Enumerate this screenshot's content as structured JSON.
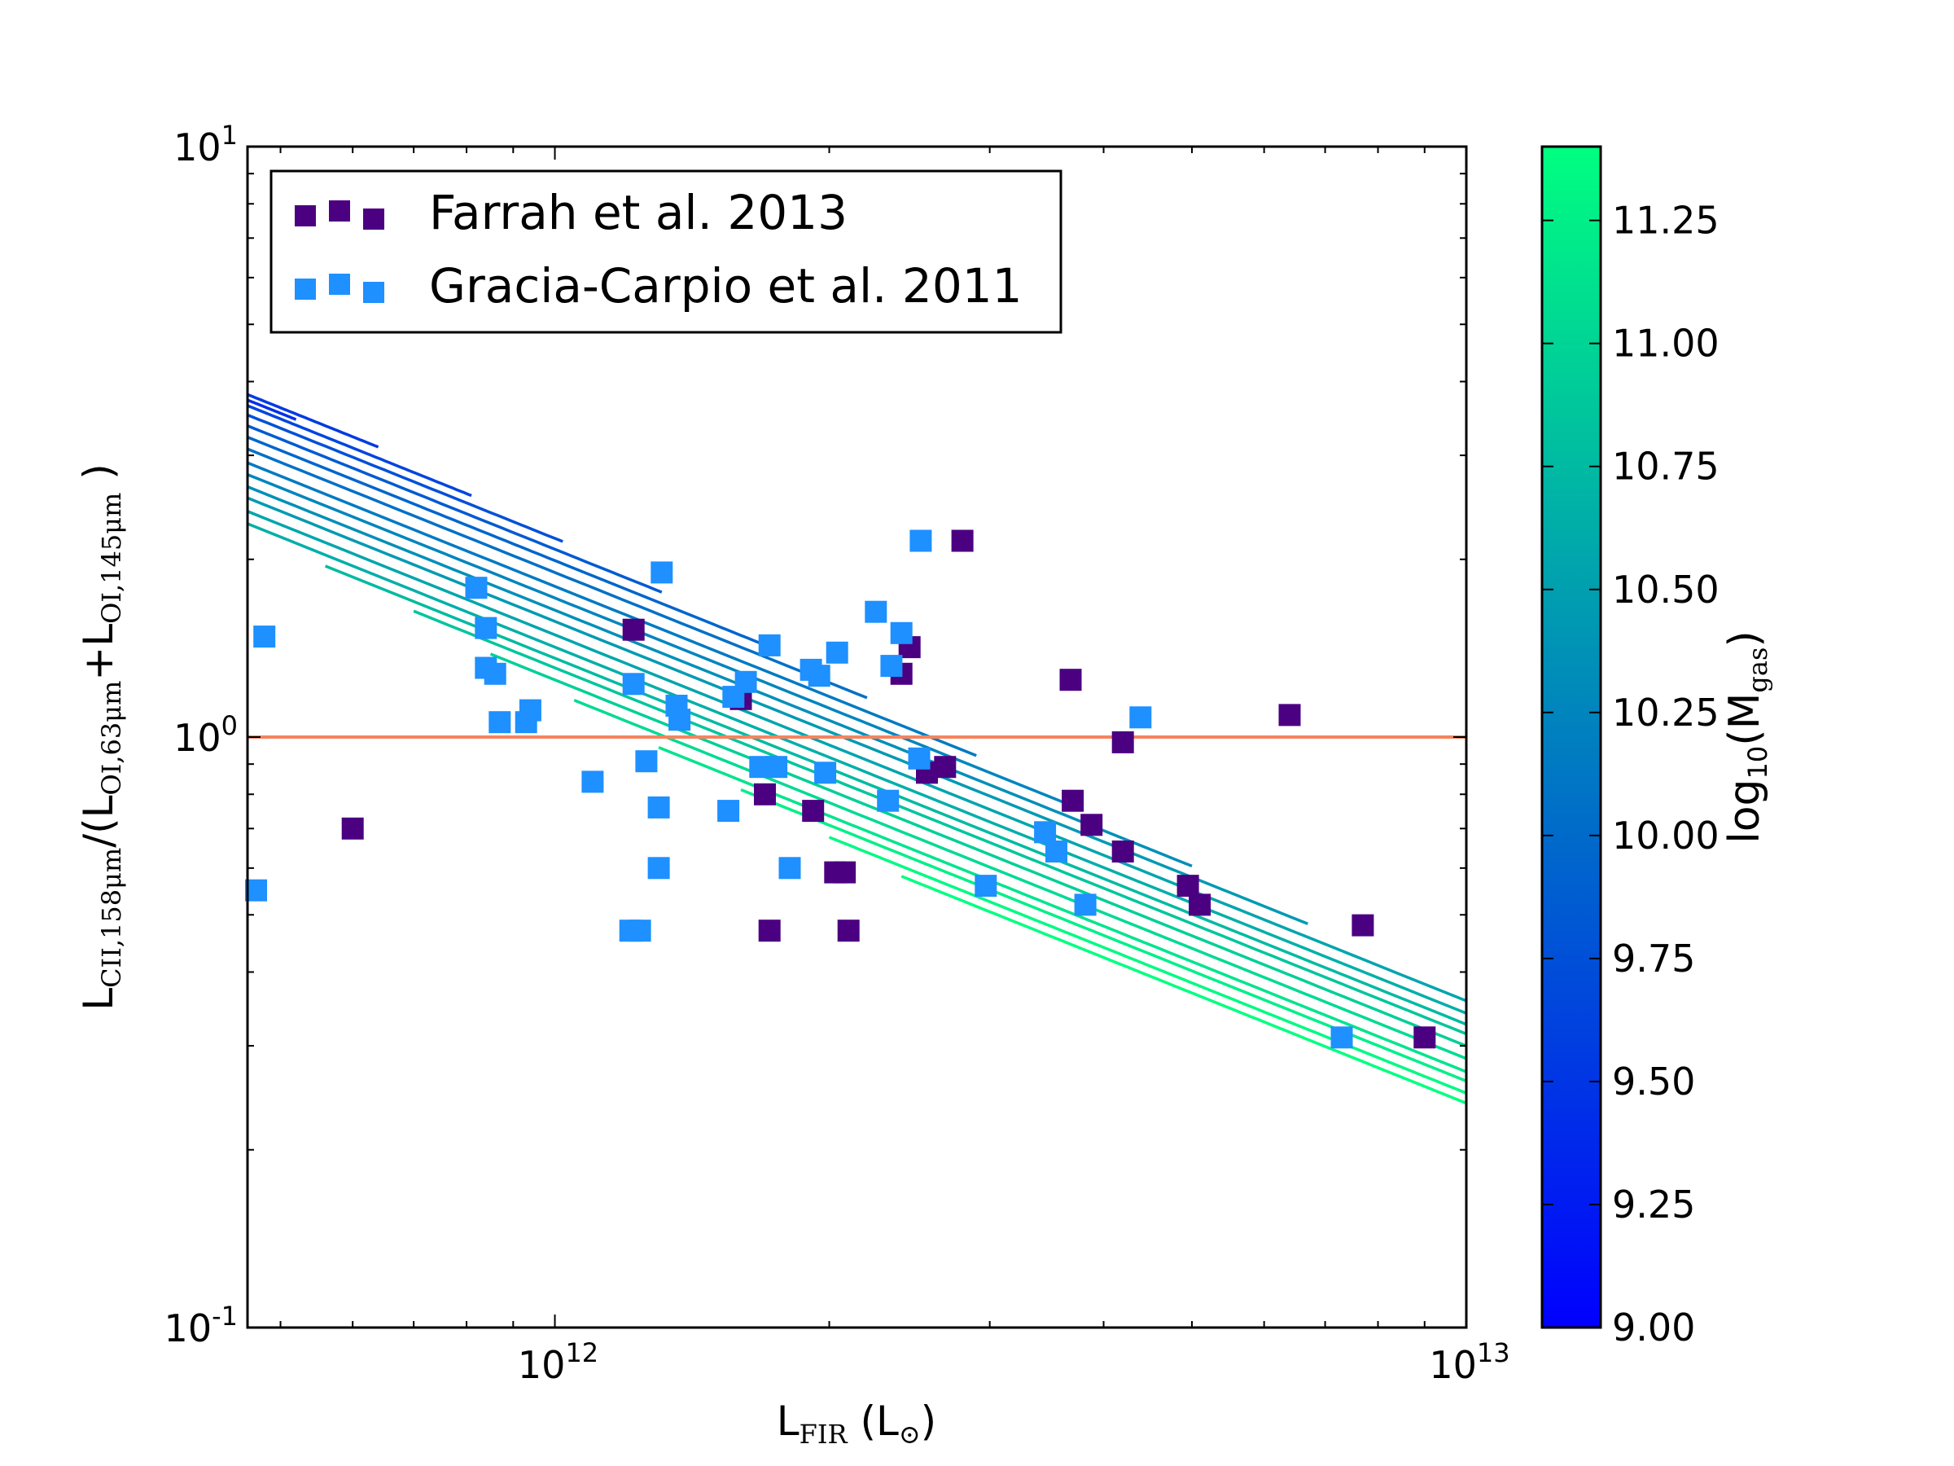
{
  "chart_data": {
    "type": "scatter",
    "title": "",
    "xscale": "log",
    "yscale": "log",
    "xlim": [
      460000000000,
      10000000000000
    ],
    "ylim": [
      0.1,
      10
    ],
    "x_ticks": [
      {
        "base": "10",
        "exp": "12",
        "value": 1000000000000
      },
      {
        "base": "10",
        "exp": "13",
        "value": 10000000000000
      }
    ],
    "y_ticks": [
      {
        "base": "10",
        "exp": "-1",
        "value": 0.1
      },
      {
        "base": "10",
        "exp": "0",
        "value": 1
      },
      {
        "base": "10",
        "exp": "1",
        "value": 10
      }
    ],
    "xlabel": {
      "main": "L",
      "sub": "FIR",
      "unit_open": " (L",
      "unit_sub": "⊙",
      "unit_close": ")"
    },
    "ylabel": {
      "p1": "L",
      "s1": "CII,158μm",
      "p2": "/(L",
      "s2": "OI,63μm",
      "p3": "+L",
      "s3": "OI,145μm",
      "p4": " )"
    },
    "reference_line": {
      "y": 1.0,
      "color": "#f4845f"
    },
    "series": [
      {
        "name": "Farrah et al. 2013",
        "color": "#4b0082",
        "points": [
          [
            600000000000,
            0.7
          ],
          [
            1220000000000,
            1.52
          ],
          [
            1600000000000,
            1.16
          ],
          [
            1700000000000,
            0.8
          ],
          [
            1720000000000,
            0.47
          ],
          [
            1920000000000,
            0.75
          ],
          [
            2030000000000,
            0.59
          ],
          [
            2080000000000,
            0.59
          ],
          [
            2100000000000,
            0.47
          ],
          [
            2400000000000,
            1.28
          ],
          [
            2450000000000,
            1.42
          ],
          [
            2560000000000,
            0.87
          ],
          [
            2680000000000,
            0.89
          ],
          [
            2800000000000,
            2.15
          ],
          [
            3680000000000,
            1.25
          ],
          [
            3700000000000,
            0.78
          ],
          [
            3880000000000,
            0.71
          ],
          [
            4200000000000,
            0.98
          ],
          [
            4200000000000,
            0.64
          ],
          [
            4950000000000,
            0.56
          ],
          [
            5100000000000,
            0.52
          ],
          [
            6400000000000,
            1.09
          ],
          [
            7700000000000,
            0.48
          ],
          [
            9000000000000,
            0.31
          ]
        ]
      },
      {
        "name": "Gracia-Carpio et al. 2011",
        "color": "#1e90ff",
        "points": [
          [
            470000000000,
            0.55
          ],
          [
            480000000000,
            1.48
          ],
          [
            820000000000,
            1.79
          ],
          [
            840000000000,
            1.53
          ],
          [
            840000000000,
            1.31
          ],
          [
            860000000000,
            1.28
          ],
          [
            870000000000,
            1.06
          ],
          [
            930000000000,
            1.06
          ],
          [
            940000000000,
            1.11
          ],
          [
            1100000000000,
            0.84
          ],
          [
            1210000000000,
            0.47
          ],
          [
            1220000000000,
            1.23
          ],
          [
            1240000000000,
            0.47
          ],
          [
            1260000000000,
            0.91
          ],
          [
            1300000000000,
            0.76
          ],
          [
            1300000000000,
            0.6
          ],
          [
            1310000000000,
            1.9
          ],
          [
            1360000000000,
            1.13
          ],
          [
            1370000000000,
            1.07
          ],
          [
            1550000000000,
            0.75
          ],
          [
            1570000000000,
            1.17
          ],
          [
            1620000000000,
            1.24
          ],
          [
            1680000000000,
            0.89
          ],
          [
            1720000000000,
            1.43
          ],
          [
            1750000000000,
            0.89
          ],
          [
            1810000000000,
            0.6
          ],
          [
            1910000000000,
            1.3
          ],
          [
            1950000000000,
            1.27
          ],
          [
            1980000000000,
            0.87
          ],
          [
            2040000000000,
            1.39
          ],
          [
            2250000000000,
            1.63
          ],
          [
            2320000000000,
            0.78
          ],
          [
            2340000000000,
            1.32
          ],
          [
            2400000000000,
            1.5
          ],
          [
            2510000000000,
            0.92
          ],
          [
            2520000000000,
            2.15
          ],
          [
            2970000000000,
            0.56
          ],
          [
            3450000000000,
            0.69
          ],
          [
            3550000000000,
            0.64
          ],
          [
            3820000000000,
            0.52
          ],
          [
            4390000000000,
            1.08
          ],
          [
            7300000000000,
            0.31
          ]
        ]
      }
    ],
    "model_curves": {
      "parameter": "log10(Mgas)",
      "slope": -0.62,
      "curves": [
        {
          "log_mgas": 9.45,
          "y_at_1e12": 2.3,
          "x_start": 460000000000,
          "x_end": 520000000000
        },
        {
          "log_mgas": 9.55,
          "y_at_1e12": 2.35,
          "x_start": 460000000000,
          "x_end": 640000000000
        },
        {
          "log_mgas": 9.65,
          "y_at_1e12": 2.25,
          "x_start": 460000000000,
          "x_end": 810000000000
        },
        {
          "log_mgas": 9.75,
          "y_at_1e12": 2.17,
          "x_start": 460000000000,
          "x_end": 1020000000000
        },
        {
          "log_mgas": 9.85,
          "y_at_1e12": 2.08,
          "x_start": 460000000000,
          "x_end": 1310000000000
        },
        {
          "log_mgas": 9.95,
          "y_at_1e12": 1.99,
          "x_start": 460000000000,
          "x_end": 1700000000000
        },
        {
          "log_mgas": 10.05,
          "y_at_1e12": 1.9,
          "x_start": 460000000000,
          "x_end": 2200000000000
        },
        {
          "log_mgas": 10.15,
          "y_at_1e12": 1.8,
          "x_start": 460000000000,
          "x_end": 2900000000000
        },
        {
          "log_mgas": 10.25,
          "y_at_1e12": 1.72,
          "x_start": 460000000000,
          "x_end": 3800000000000
        },
        {
          "log_mgas": 10.35,
          "y_at_1e12": 1.64,
          "x_start": 460000000000,
          "x_end": 5000000000000
        },
        {
          "log_mgas": 10.45,
          "y_at_1e12": 1.57,
          "x_start": 460000000000,
          "x_end": 6700000000000
        },
        {
          "log_mgas": 10.55,
          "y_at_1e12": 1.49,
          "x_start": 460000000000,
          "x_end": 10000000000000
        },
        {
          "log_mgas": 10.65,
          "y_at_1e12": 1.42,
          "x_start": 460000000000,
          "x_end": 10000000000000
        },
        {
          "log_mgas": 10.75,
          "y_at_1e12": 1.36,
          "x_start": 560000000000,
          "x_end": 10000000000000
        },
        {
          "log_mgas": 10.85,
          "y_at_1e12": 1.31,
          "x_start": 700000000000,
          "x_end": 10000000000000
        },
        {
          "log_mgas": 10.95,
          "y_at_1e12": 1.25,
          "x_start": 850000000000,
          "x_end": 10000000000000
        },
        {
          "log_mgas": 11.05,
          "y_at_1e12": 1.19,
          "x_start": 1050000000000,
          "x_end": 10000000000000
        },
        {
          "log_mgas": 11.15,
          "y_at_1e12": 1.13,
          "x_start": 1300000000000,
          "x_end": 10000000000000
        },
        {
          "log_mgas": 11.25,
          "y_at_1e12": 1.09,
          "x_start": 1600000000000,
          "x_end": 10000000000000
        },
        {
          "log_mgas": 11.35,
          "y_at_1e12": 1.04,
          "x_start": 2000000000000,
          "x_end": 10000000000000
        },
        {
          "log_mgas": 11.4,
          "y_at_1e12": 1.0,
          "x_start": 2400000000000,
          "x_end": 10000000000000
        }
      ]
    },
    "colorbar": {
      "min": 9.0,
      "max": 11.4,
      "label_main": "log",
      "label_sub10": "10",
      "label_open": "(M",
      "label_sub": "gas",
      "label_close": ")",
      "ticks": [
        "9.00",
        "9.25",
        "9.50",
        "9.75",
        "10.00",
        "10.25",
        "10.50",
        "10.75",
        "11.00",
        "11.25"
      ],
      "color_low": "#0000ff",
      "color_high": "#00ff80"
    },
    "legend": {
      "location": "top-left"
    }
  }
}
